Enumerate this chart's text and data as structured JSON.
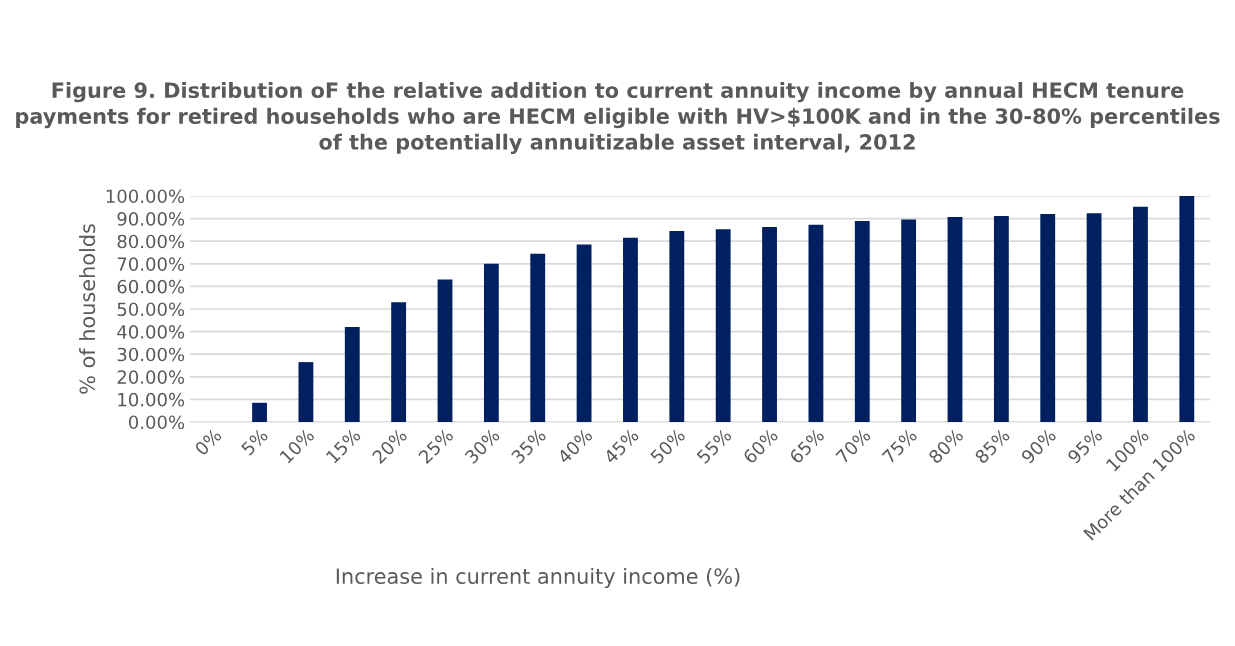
{
  "chart_data": {
    "type": "bar",
    "title": "Figure 9. Distribution oF the relative addition to current annuity income by annual HECM tenure payments for retired households who are HECM eligible with HV>$100K and in the 30-80% percentiles of the potentially annuitizable asset interval, 2012",
    "xlabel": "Increase in current annuity income (%)",
    "ylabel": "% of households",
    "categories": [
      "0%",
      "5%",
      "10%",
      "15%",
      "20%",
      "25%",
      "30%",
      "35%",
      "40%",
      "45%",
      "50%",
      "55%",
      "60%",
      "65%",
      "70%",
      "75%",
      "80%",
      "85%",
      "90%",
      "95%",
      "100%",
      "More than 100%"
    ],
    "values": [
      0,
      8.5,
      26.5,
      42,
      53,
      63,
      70,
      74.5,
      78.5,
      81.5,
      84.5,
      85.3,
      86.3,
      87.3,
      88.9,
      89.6,
      90.7,
      91.1,
      92,
      92.4,
      95.2,
      100
    ],
    "color": "#002060",
    "ylim": [
      0,
      100
    ],
    "yticks": [
      {
        "value": 0,
        "label": "0.00%"
      },
      {
        "value": 10,
        "label": "10.00%"
      },
      {
        "value": 20,
        "label": "20.00%"
      },
      {
        "value": 30,
        "label": "30.00%"
      },
      {
        "value": 40,
        "label": "40.00%"
      },
      {
        "value": 50,
        "label": "50.00%"
      },
      {
        "value": 60,
        "label": "60.00%"
      },
      {
        "value": 70,
        "label": "70.00%"
      },
      {
        "value": 80,
        "label": "80.00%"
      },
      {
        "value": 90,
        "label": "90.00%"
      },
      {
        "value": 100,
        "label": "100.00%"
      }
    ],
    "grid": "y"
  }
}
